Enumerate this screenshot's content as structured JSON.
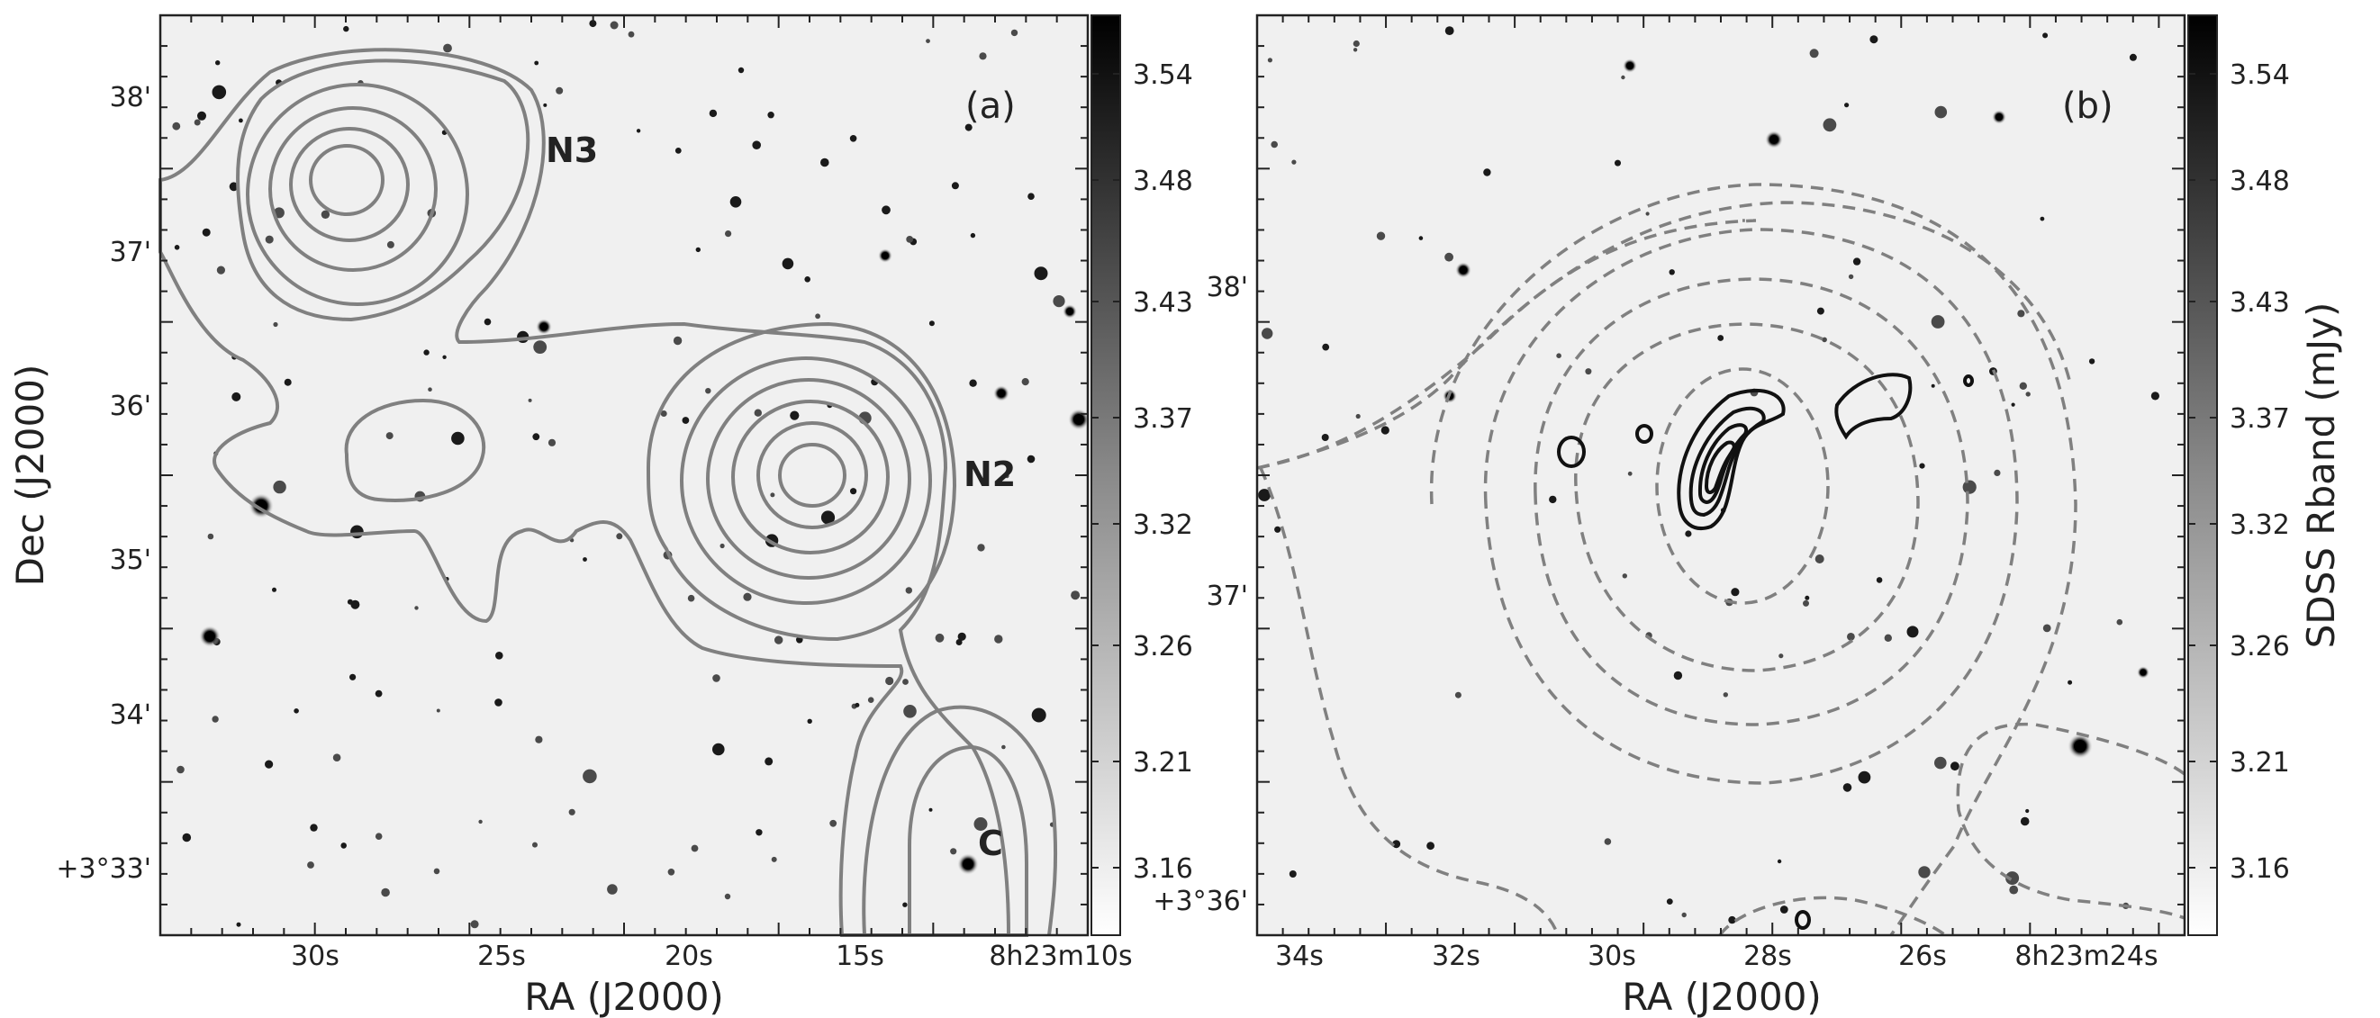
{
  "figure": {
    "panel_a": {
      "letter": "(a)",
      "xlabel": "RA (J2000)",
      "ylabel": "Dec (J2000)",
      "xticks": [
        "30s",
        "25s",
        "20s",
        "15s",
        "8h23m10s"
      ],
      "yticks": [
        "38'",
        "37'",
        "36'",
        "35'",
        "34'",
        "+3°33'"
      ],
      "sources": [
        "N3",
        "N2",
        "C"
      ],
      "colorbar": {
        "ticks": [
          "3.54",
          "3.48",
          "3.43",
          "3.37",
          "3.32",
          "3.26",
          "3.21",
          "3.16"
        ],
        "label": ""
      }
    },
    "panel_b": {
      "letter": "(b)",
      "xlabel": "RA (J2000)",
      "ylabel": "",
      "xticks": [
        "34s",
        "32s",
        "30s",
        "28s",
        "26s",
        "8h23m24s"
      ],
      "yticks": [
        "38'",
        "37'",
        "+3°36'"
      ],
      "colorbar": {
        "ticks": [
          "3.54",
          "3.48",
          "3.43",
          "3.37",
          "3.32",
          "3.26",
          "3.21",
          "3.16"
        ],
        "label": "SDSS Rband (mJy)"
      }
    }
  }
}
